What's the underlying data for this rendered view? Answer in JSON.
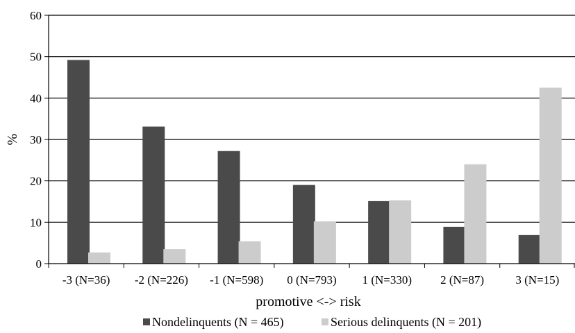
{
  "chart_data": {
    "type": "bar",
    "categories": [
      "-3 (N=36)",
      "-2 (N=226)",
      "-1 (N=598)",
      "0 (N=793)",
      "1 (N=330)",
      "2 (N=87)",
      "3 (N=15)"
    ],
    "series": [
      {
        "name": "Nondelinquents (N = 465)",
        "values": [
          49.2,
          33.1,
          27.2,
          19.0,
          15.1,
          8.9,
          6.9
        ],
        "color": "#4a4a4a"
      },
      {
        "name": "Serious delinquents (N = 201)",
        "values": [
          2.7,
          3.5,
          5.4,
          10.2,
          15.3,
          24.0,
          42.5
        ],
        "color": "#cccccc"
      }
    ],
    "title": "",
    "xlabel": "promotive <-> risk",
    "ylabel": "%",
    "ylim": [
      0,
      60
    ],
    "yticks": [
      0,
      10,
      20,
      30,
      40,
      50,
      60
    ],
    "grid": "horizontal",
    "legend": "bottom"
  }
}
